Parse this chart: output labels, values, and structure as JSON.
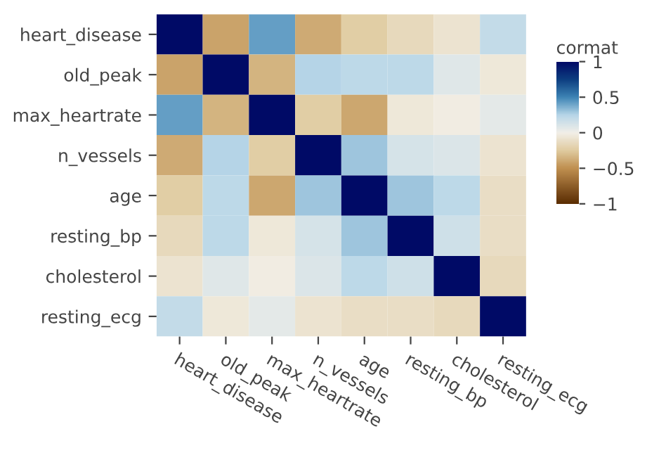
{
  "chart_data": {
    "type": "heatmap",
    "clabel": "cormat",
    "categories": [
      "heart_disease",
      "old_peak",
      "max_heartrate",
      "n_vessels",
      "age",
      "resting_bp",
      "cholesterol",
      "resting_ecg"
    ],
    "y_categories": [
      "heart_disease",
      "old_peak",
      "max_heartrate",
      "n_vessels",
      "age",
      "resting_bp",
      "cholesterol",
      "resting_ecg"
    ],
    "cells": [
      [
        1,
        -0.42,
        0.42,
        -0.39,
        -0.23,
        -0.15,
        -0.08,
        0.2
      ],
      [
        -0.42,
        1,
        -0.35,
        0.25,
        0.22,
        0.22,
        0.08,
        -0.05
      ],
      [
        0.42,
        -0.35,
        1,
        -0.23,
        -0.4,
        -0.05,
        -0.02,
        0.06
      ],
      [
        -0.39,
        0.25,
        -0.23,
        1,
        0.3,
        0.12,
        0.1,
        -0.08
      ],
      [
        -0.23,
        0.22,
        -0.4,
        0.3,
        1,
        0.3,
        0.22,
        -0.12
      ],
      [
        -0.15,
        0.22,
        -0.05,
        0.12,
        0.3,
        1,
        0.15,
        -0.12
      ],
      [
        -0.08,
        0.08,
        -0.02,
        0.1,
        0.22,
        0.15,
        1,
        -0.15
      ],
      [
        0.2,
        -0.05,
        0.06,
        -0.08,
        -0.12,
        -0.12,
        -0.15,
        1
      ]
    ],
    "clim": [
      -1,
      1
    ],
    "cticks": [
      1,
      0.5,
      0,
      {
        "value": -0.5,
        "label": "−0.5"
      },
      {
        "value": -1,
        "label": "−1"
      }
    ],
    "grid": false
  }
}
